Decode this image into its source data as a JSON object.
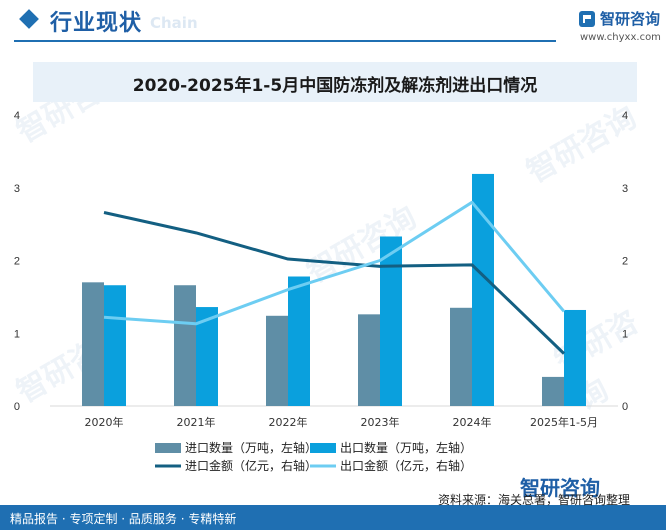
{
  "header": {
    "title": "行业现状",
    "watermark": "Chain",
    "brand_name": "智研咨询",
    "brand_url": "www.chyxx.com"
  },
  "footer": {
    "left_text": "精品报告 · 专项定制 · 品质服务 · 专精特新",
    "source_text": "资料来源：海关总署，智研咨询整理",
    "brand_name": "智研咨询"
  },
  "watermark_text": "智研咨询",
  "colors": {
    "import_qty": "#5f8ea6",
    "export_qty": "#0aa0dd",
    "import_value": "#135f82",
    "export_value": "#6dcdf2",
    "accent": "#1f6fb2"
  },
  "chart_data": {
    "type": "bar",
    "title": "2020-2025年1-5月中国防冻剂及解冻剂进出口情况",
    "categories": [
      "2020年",
      "2021年",
      "2022年",
      "2023年",
      "2024年",
      "2025年1-5月"
    ],
    "ylim_left": [
      0,
      4
    ],
    "ylim_right": [
      0,
      4
    ],
    "yticks_left": [
      0,
      1,
      2,
      3,
      4
    ],
    "yticks_right": [
      0,
      1,
      2,
      3,
      4
    ],
    "series": [
      {
        "name": "进口数量（万吨，左轴）",
        "kind": "bar",
        "axis": "left",
        "values": [
          1.7,
          1.66,
          1.24,
          1.26,
          1.35,
          0.4
        ]
      },
      {
        "name": "出口数量（万吨，左轴）",
        "kind": "bar",
        "axis": "left",
        "values": [
          1.66,
          1.36,
          1.78,
          2.33,
          3.19,
          1.32
        ]
      },
      {
        "name": "进口金额（亿元，右轴）",
        "kind": "line",
        "axis": "right",
        "values": [
          2.66,
          2.38,
          2.02,
          1.92,
          1.94,
          0.72
        ]
      },
      {
        "name": "出口金额（亿元，右轴）",
        "kind": "line",
        "axis": "right",
        "values": [
          1.22,
          1.13,
          1.6,
          2.0,
          2.8,
          1.3
        ]
      }
    ],
    "legend_position": "bottom",
    "grid": false
  }
}
